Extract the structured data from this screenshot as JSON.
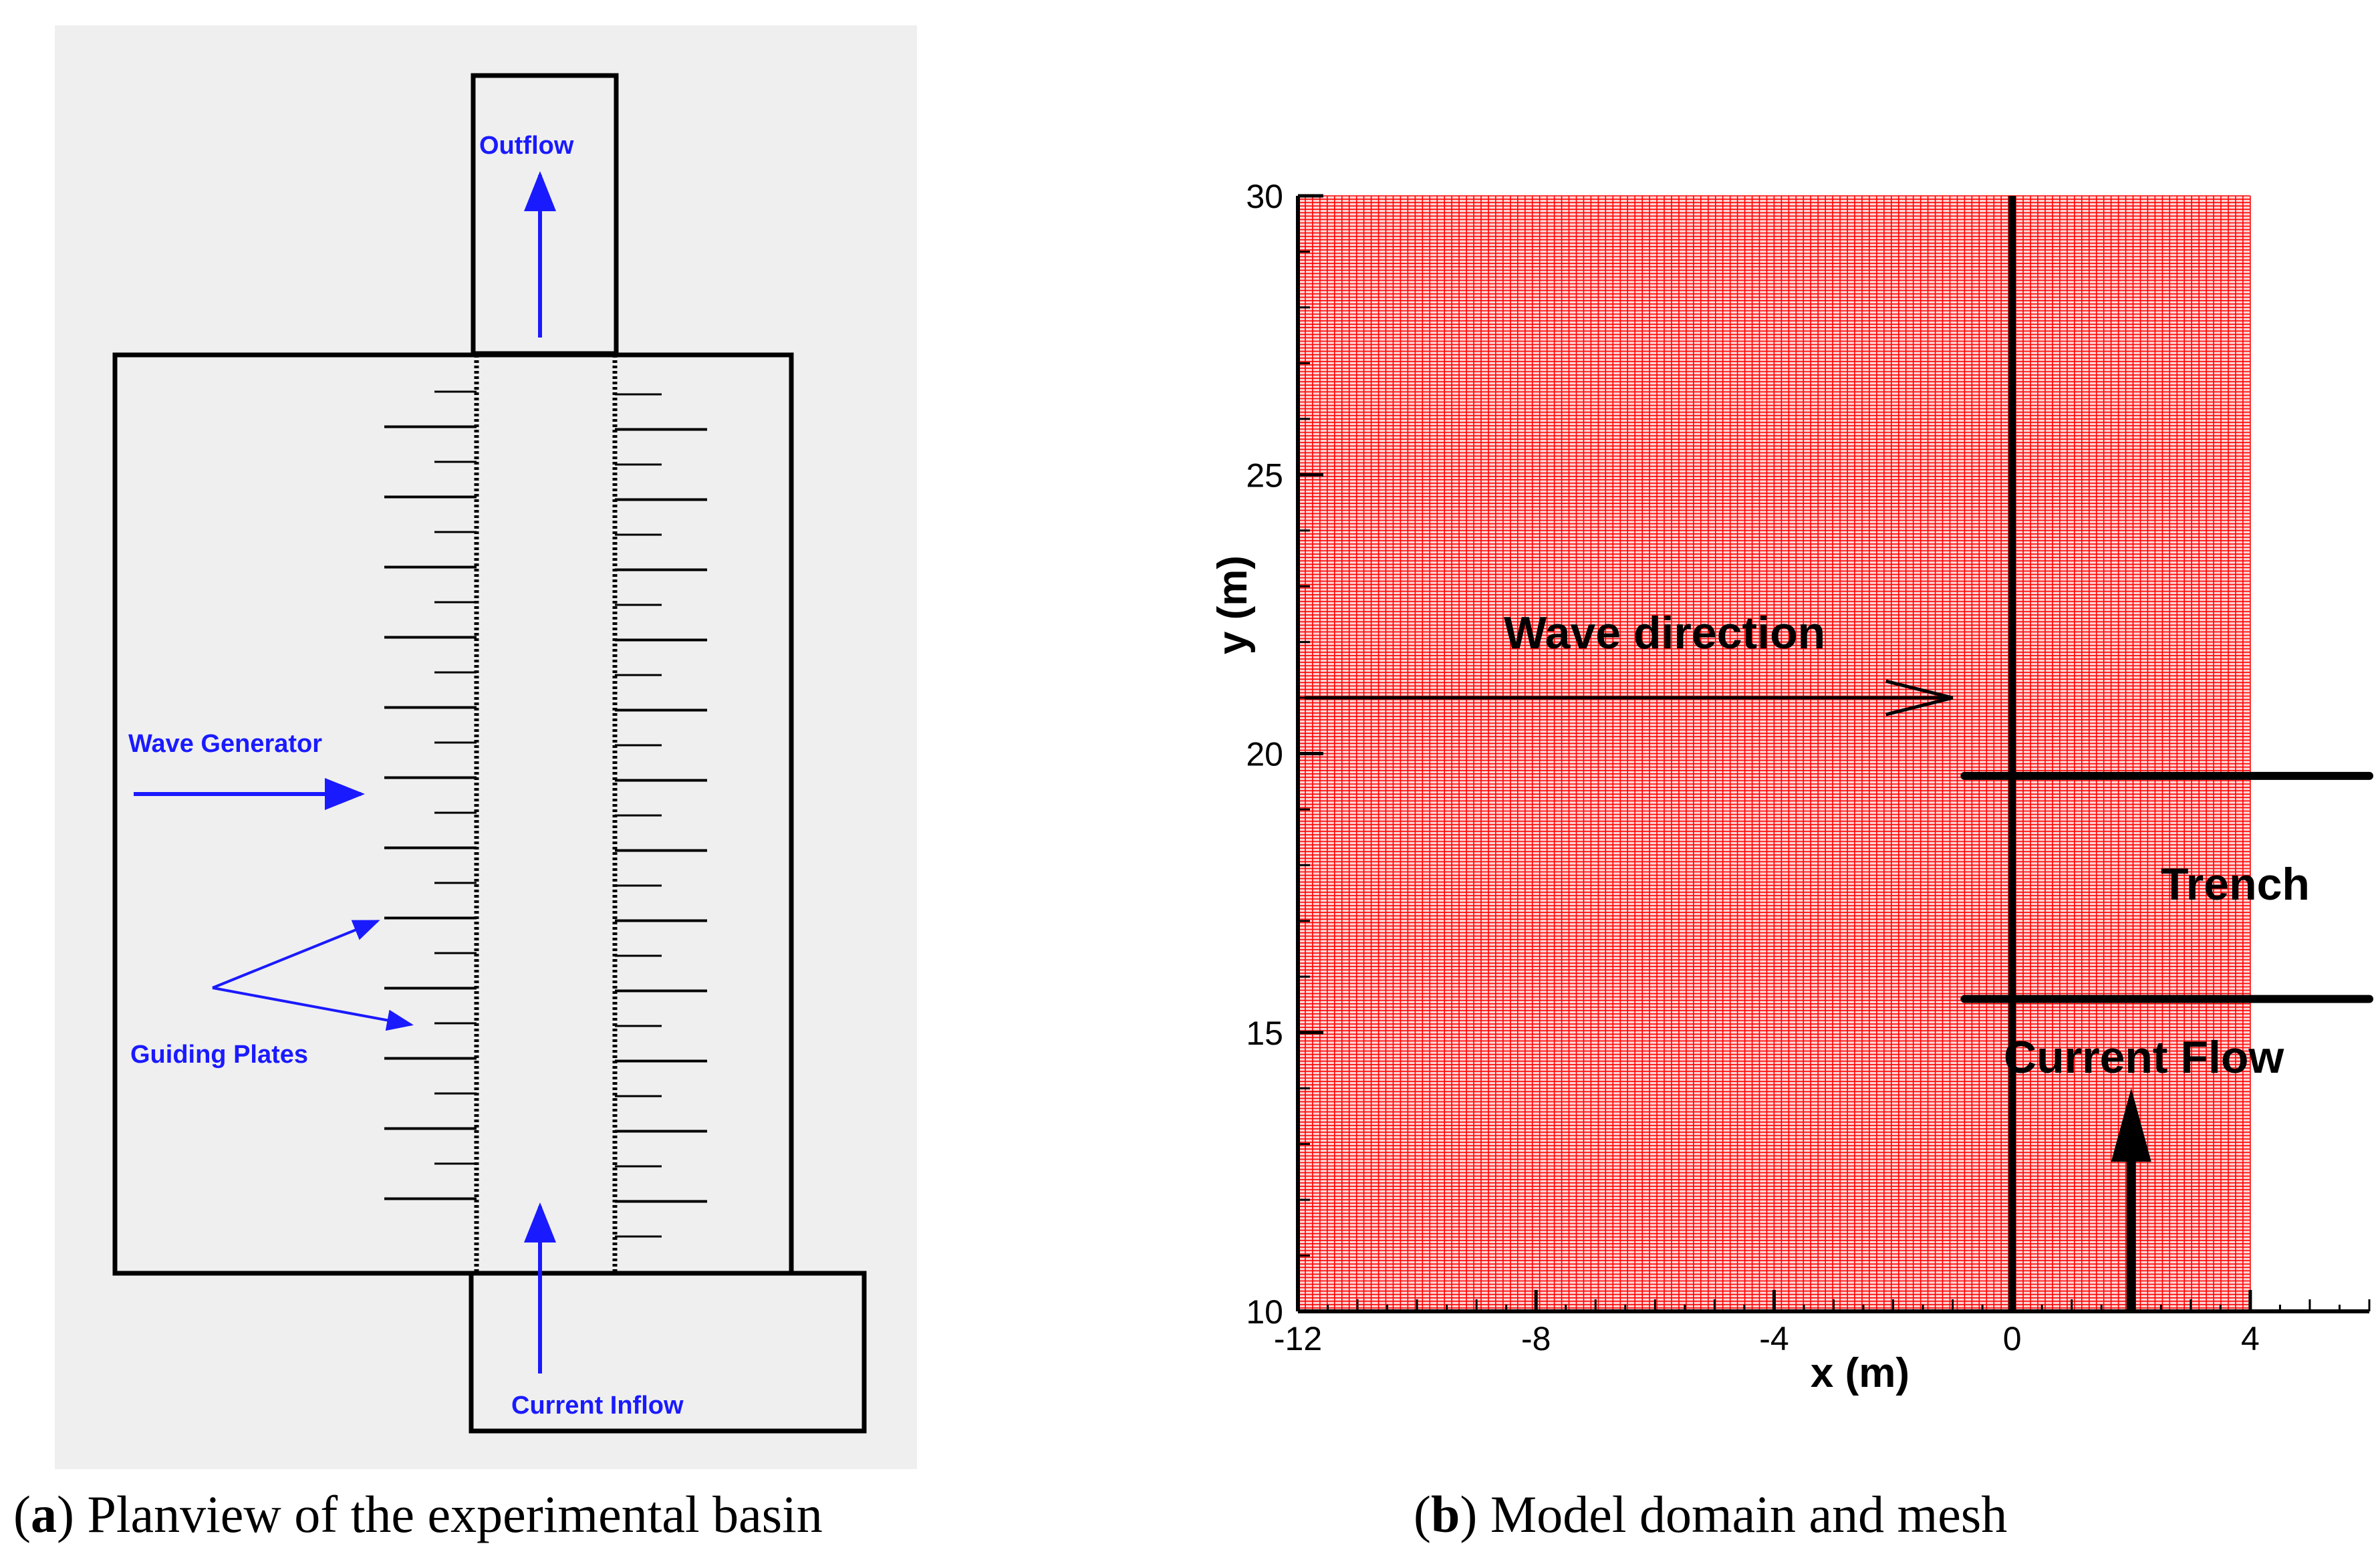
{
  "panel_a": {
    "labels": {
      "outflow": "Outflow",
      "wave_generator": "Wave Generator",
      "guiding_plates": "Guiding Plates",
      "current_inflow": "Current Inflow"
    },
    "caption_letter": "a",
    "caption_text": " Planview of the experimental basin"
  },
  "panel_b": {
    "caption_letter": "b",
    "caption_text": " Model domain and mesh",
    "annotations": {
      "wave_direction": "Wave direction",
      "trench": "Trench",
      "current_flow": "Current Flow"
    },
    "colors": {
      "mesh": "#ff0000",
      "mesh_bg": "#ffd6d6"
    }
  },
  "chart_data": {
    "type": "diagram",
    "title": "Model domain and mesh",
    "xlabel": "x (m)",
    "ylabel": "y (m)",
    "xlim": [
      -12,
      6
    ],
    "ylim": [
      10,
      30
    ],
    "x_ticks": [
      "-12",
      "-8",
      "-4",
      "0",
      "4"
    ],
    "x_tick_values": [
      -12,
      -8,
      -4,
      0,
      4
    ],
    "y_ticks": [
      "10",
      "15",
      "20",
      "25",
      "30"
    ],
    "y_tick_values": [
      10,
      15,
      20,
      25,
      30
    ],
    "mesh_extent": {
      "x": [
        -12,
        4
      ],
      "y": [
        10,
        30
      ]
    },
    "vertical_line_x": 0,
    "trench_lines_y": [
      19.6,
      15.6
    ],
    "trench_lines_x": [
      -0.8,
      6
    ],
    "wave_arrow": {
      "x": [
        -12,
        -1
      ],
      "y": 21
    },
    "current_arrow": {
      "x": 2,
      "y": [
        10,
        14
      ]
    }
  }
}
